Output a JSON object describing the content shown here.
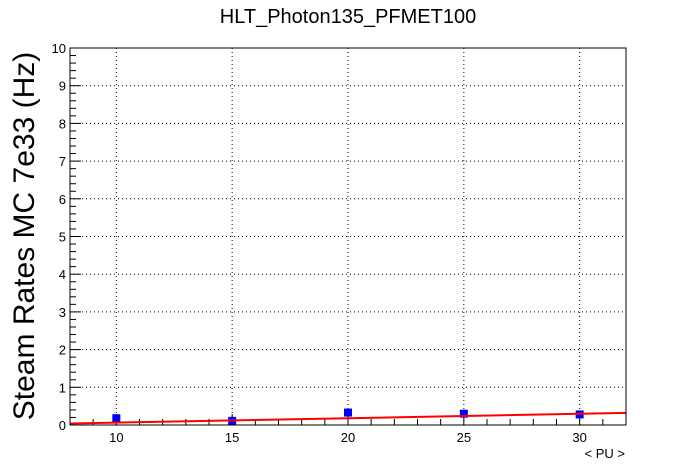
{
  "chart_data": {
    "type": "scatter",
    "title": "HLT_Photon135_PFMET100",
    "xlabel": "< PU >",
    "ylabel": "Steam Rates MC 7e33 (Hz)",
    "xlim": [
      8,
      32
    ],
    "ylim": [
      0,
      10
    ],
    "x_ticks": [
      10,
      15,
      20,
      25,
      30
    ],
    "y_ticks": [
      0,
      1,
      2,
      3,
      4,
      5,
      6,
      7,
      8,
      9,
      10
    ],
    "grid": true,
    "series": [
      {
        "marker": "square",
        "color": "#0000ff",
        "points": [
          {
            "x": 10,
            "y": 0.18
          },
          {
            "x": 15,
            "y": 0.11
          },
          {
            "x": 20,
            "y": 0.33
          },
          {
            "x": 25,
            "y": 0.3
          },
          {
            "x": 30,
            "y": 0.28
          }
        ]
      },
      {
        "type": "line",
        "color": "#ff0000",
        "points": [
          {
            "x": 8,
            "y": 0.04
          },
          {
            "x": 32,
            "y": 0.32
          }
        ]
      }
    ]
  }
}
